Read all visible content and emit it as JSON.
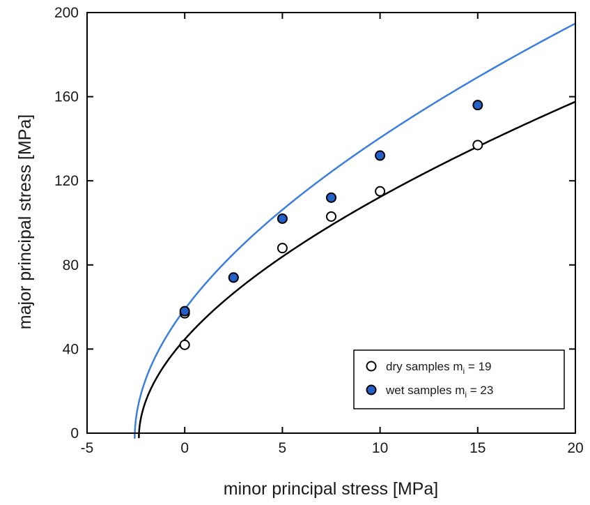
{
  "chart_data": {
    "type": "scatter",
    "title": "",
    "xlabel": "minor principal stress [MPa]",
    "ylabel": "major principal stress [MPa]",
    "xlim": [
      -5,
      20
    ],
    "ylim": [
      0,
      200
    ],
    "xticks": [
      "-5",
      "0",
      "5",
      "10",
      "15",
      "20"
    ],
    "yticks": [
      "0",
      "40",
      "80",
      "120",
      "160",
      "200"
    ],
    "grid": false,
    "legend_position": "bottom-right",
    "series": [
      {
        "name": "dry samples m",
        "name_subscript": "i",
        "name_suffix": " = 19",
        "marker": "open-circle",
        "color": "#000000",
        "fill": "#ffffff",
        "points": [
          {
            "x": 0,
            "y": 42
          },
          {
            "x": 0,
            "y": 57
          },
          {
            "x": 2.5,
            "y": 74
          },
          {
            "x": 5,
            "y": 88
          },
          {
            "x": 7.5,
            "y": 103
          },
          {
            "x": 10,
            "y": 115
          },
          {
            "x": 15,
            "y": 137
          }
        ],
        "fit": {
          "sigma_ci": 44.6,
          "m_i": 19,
          "color": "#000000"
        }
      },
      {
        "name": "wet samples m",
        "name_subscript": "i",
        "name_suffix": " = 23",
        "marker": "filled-circle",
        "color": "#000000",
        "fill": "#2460c8",
        "points": [
          {
            "x": 0,
            "y": 58
          },
          {
            "x": 2.5,
            "y": 74
          },
          {
            "x": 5,
            "y": 102
          },
          {
            "x": 7.5,
            "y": 112
          },
          {
            "x": 10,
            "y": 132
          },
          {
            "x": 15,
            "y": 156
          }
        ],
        "fit": {
          "sigma_ci": 58.9,
          "m_i": 23,
          "color": "#3a7ee0"
        }
      }
    ]
  }
}
